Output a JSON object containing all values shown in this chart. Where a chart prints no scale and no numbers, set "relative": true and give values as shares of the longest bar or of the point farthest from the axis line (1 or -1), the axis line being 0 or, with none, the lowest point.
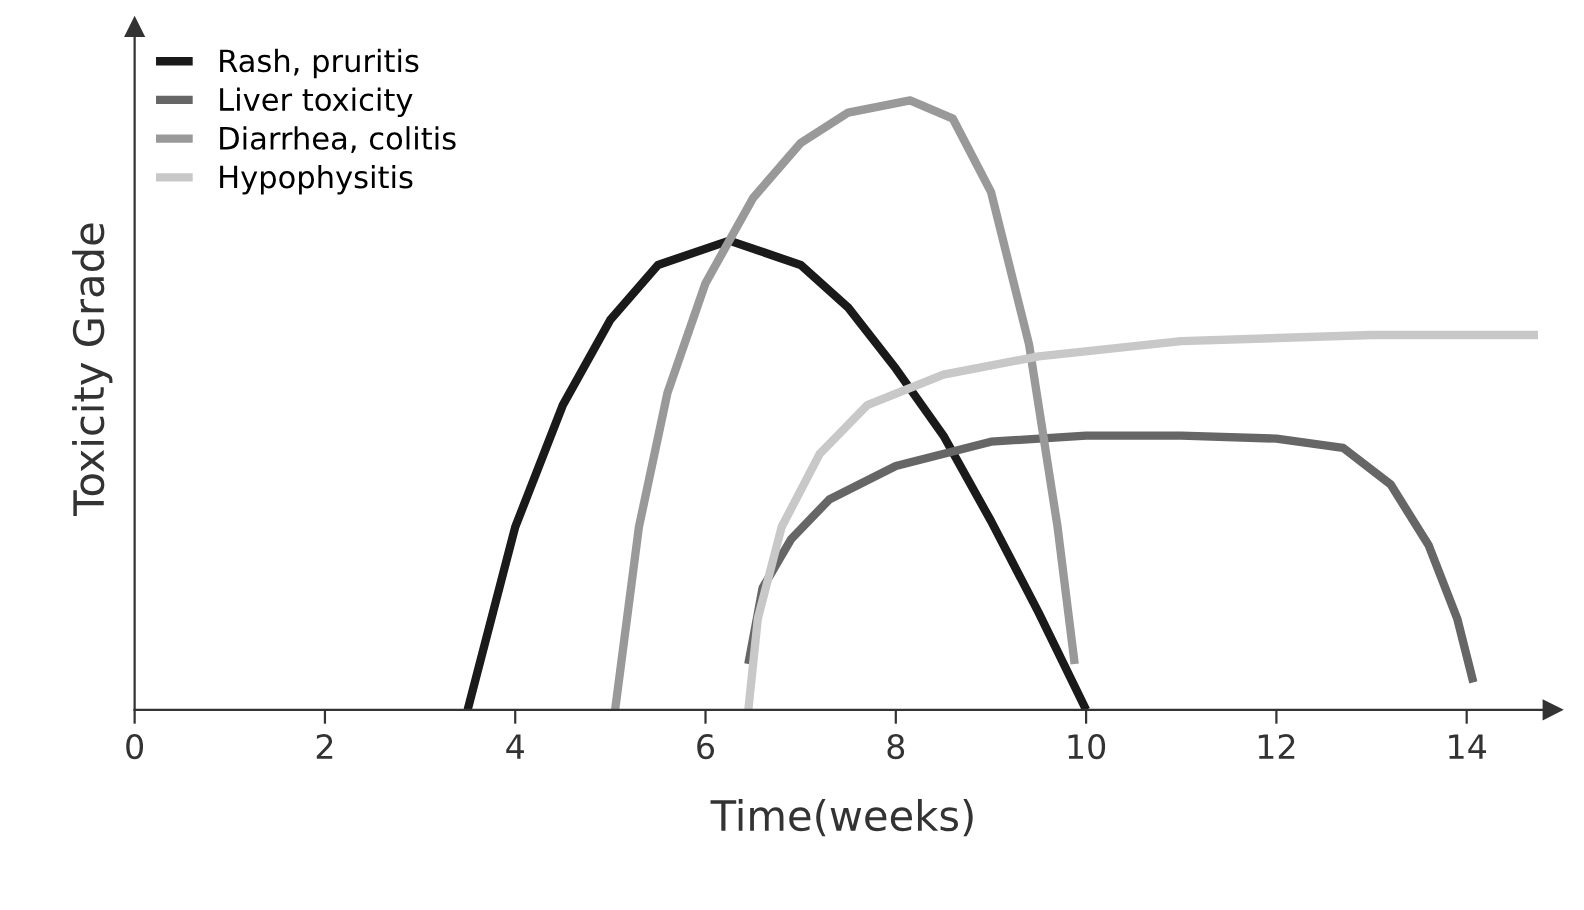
{
  "chart_data": {
    "type": "line",
    "relative": true,
    "xlabel": "Time(weeks)",
    "ylabel": "Toxicity Grade",
    "xlim": [
      0,
      14.9
    ],
    "xticks": [
      0,
      2,
      4,
      6,
      8,
      10,
      12,
      14
    ],
    "tick_labels": "x",
    "grid": false,
    "legend": "top left",
    "marker": "none",
    "line_style": "solid",
    "series": [
      {
        "name": "Rash, pruritis",
        "color": "#1a1a1a",
        "x": [
          3.5,
          4,
          4.5,
          5,
          5.5,
          6.25,
          7,
          7.5,
          8,
          8.5,
          9,
          9.5,
          10
        ],
        "values": [
          0,
          0.3,
          0.5,
          0.64,
          0.73,
          0.77,
          0.73,
          0.66,
          0.56,
          0.45,
          0.31,
          0.16,
          0
        ]
      },
      {
        "name": "Liver toxicity",
        "color": "#666666",
        "x": [
          6.45,
          6.6,
          6.9,
          7.3,
          8,
          9,
          10,
          11,
          12,
          12.7,
          13.2,
          13.6,
          13.9,
          14.07
        ],
        "values": [
          0.075,
          0.2,
          0.28,
          0.345,
          0.4,
          0.44,
          0.45,
          0.45,
          0.445,
          0.43,
          0.37,
          0.27,
          0.15,
          0.045
        ]
      },
      {
        "name": "Diarrhea, colitis",
        "color": "#999999",
        "x": [
          5.05,
          5.3,
          5.6,
          6,
          6.5,
          7,
          7.5,
          8.15,
          8.6,
          9,
          9.4,
          9.7,
          9.88
        ],
        "values": [
          0,
          0.3,
          0.52,
          0.7,
          0.84,
          0.93,
          0.98,
          1.0,
          0.97,
          0.85,
          0.6,
          0.3,
          0.075
        ]
      },
      {
        "name": "Hypophysitis",
        "color": "#c8c8c8",
        "x": [
          6.45,
          6.55,
          6.8,
          7.2,
          7.7,
          8.5,
          9.5,
          11,
          13,
          14.75
        ],
        "values": [
          0,
          0.15,
          0.3,
          0.42,
          0.5,
          0.55,
          0.58,
          0.605,
          0.615,
          0.615
        ]
      }
    ]
  }
}
